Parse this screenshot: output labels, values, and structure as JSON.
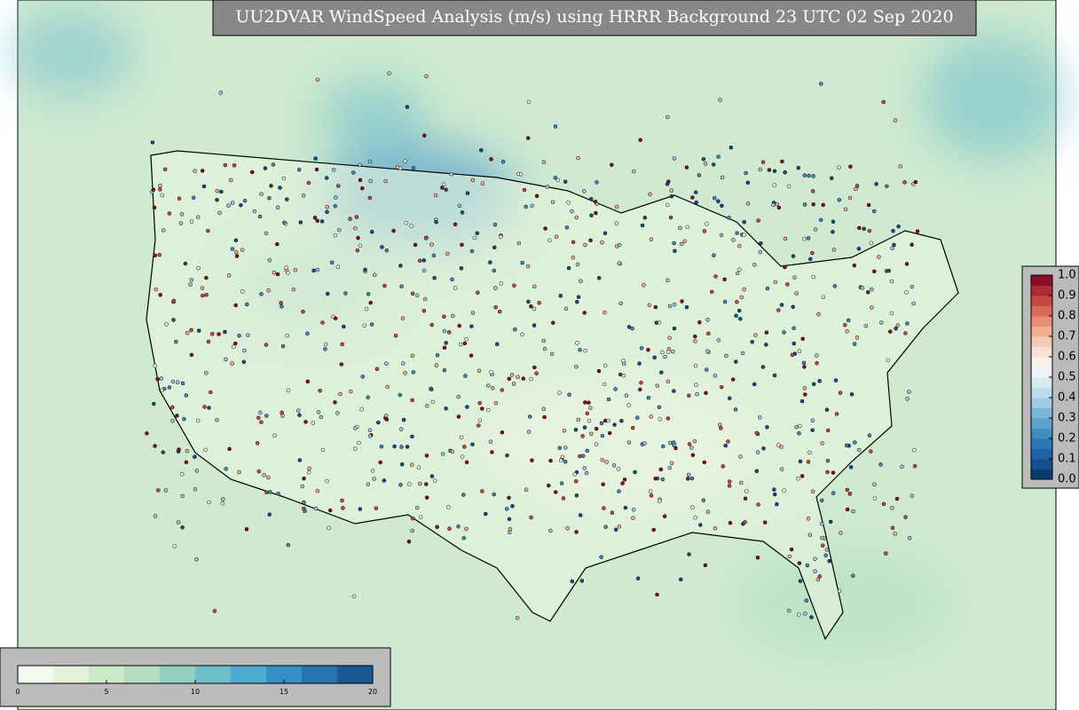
{
  "title": "UU2DVAR WindSpeed Analysis (m/s) using HRRR Background 23 UTC 02 Sep 2020",
  "colorbars": [
    {
      "orientation": "horizontal",
      "lim": [
        0,
        20
      ],
      "ticks": [
        0,
        5,
        10,
        15,
        20
      ],
      "colors": [
        "#f4fbee",
        "#e2f3da",
        "#cdeac8",
        "#b3dfc0",
        "#93d0c0",
        "#6fbfcb",
        "#4eaad0",
        "#3591c4",
        "#2374b0",
        "#1a5a94"
      ]
    },
    {
      "orientation": "vertical",
      "lim": [
        0,
        1
      ],
      "ticks": [
        {
          "value": 0,
          "label": "0.0"
        },
        {
          "value": 0.1,
          "label": "0.1"
        },
        {
          "value": 0.2,
          "label": "0.2"
        },
        {
          "value": 0.3,
          "label": "0.3"
        },
        {
          "value": 0.4,
          "label": "0.4"
        },
        {
          "value": 0.5,
          "label": "0.5"
        },
        {
          "value": 0.6,
          "label": "0.6"
        },
        {
          "value": 0.7,
          "label": "0.7"
        },
        {
          "value": 0.8,
          "label": "0.8"
        },
        {
          "value": 0.9,
          "label": "0.9"
        },
        {
          "value": 1,
          "label": "1.0"
        }
      ],
      "colors": [
        "#0b3c6e",
        "#14508d",
        "#1f63a8",
        "#2c78b6",
        "#3d8dc3",
        "#5aa3cf",
        "#7ab8d9",
        "#9ccbe3",
        "#bcdbeb",
        "#d8e9f2",
        "#eef3f5",
        "#f7f1ee",
        "#f9e0d4",
        "#f7cab5",
        "#f2ae93",
        "#e88d72",
        "#d86b57",
        "#c54a44",
        "#ad2b36",
        "#8a0f26"
      ]
    }
  ]
}
